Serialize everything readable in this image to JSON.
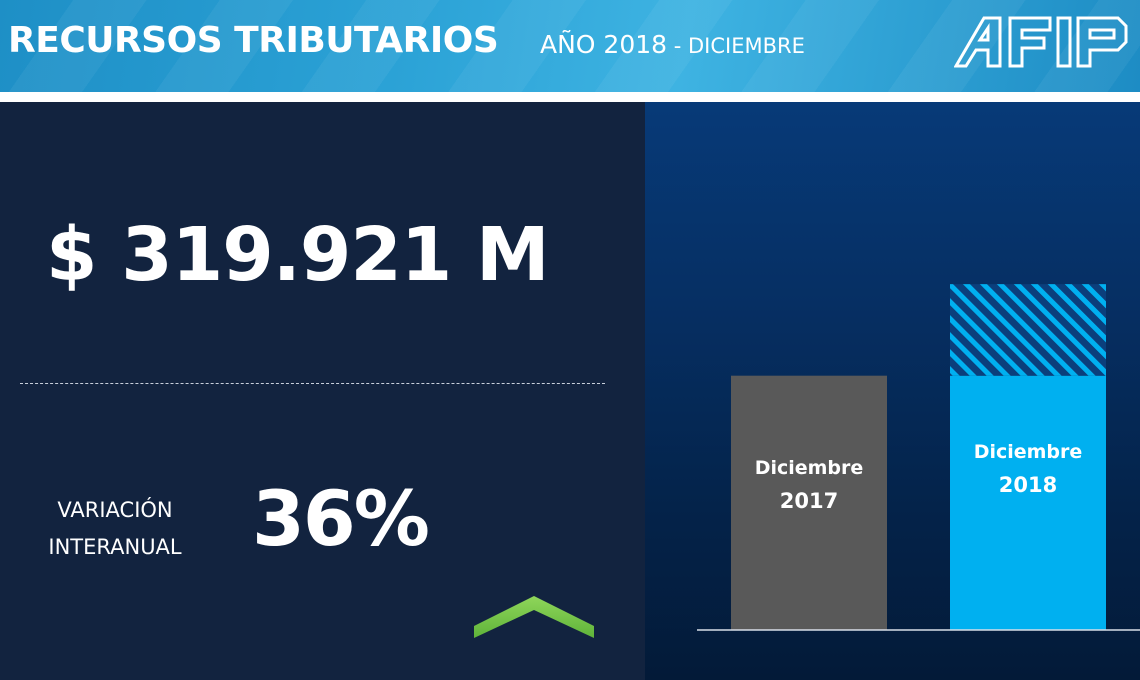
{
  "header": {
    "title": "RECURSOS TRIBUTARIOS",
    "year_label": "AÑO 2018",
    "month_label": " - DICIEMBRE",
    "logo_text": "AFIP"
  },
  "summary": {
    "amount": "$ 319.921 M",
    "variation_label_line1": "VARIACIÓN",
    "variation_label_line2": "INTERANUAL",
    "variation_value": "36%",
    "trend_icon": "up-chevron-icon"
  },
  "colors": {
    "bar_2017": "#595959",
    "bar_2018": "#00b0f0",
    "increment_hatch": "#00b0f0",
    "trend": "#70c64a"
  },
  "chart_data": {
    "type": "bar",
    "categories": [
      "Diciembre 2017",
      "Diciembre 2018"
    ],
    "category_labels": [
      [
        "Diciembre",
        "2017"
      ],
      [
        "Diciembre",
        "2018"
      ]
    ],
    "values": [
      235237,
      319921
    ],
    "base_level": 235237,
    "increment_shown_hatched": true,
    "title": "",
    "xlabel": "",
    "ylabel": "",
    "ylim": [
      0,
      370000
    ],
    "grid": false,
    "legend": "none"
  }
}
